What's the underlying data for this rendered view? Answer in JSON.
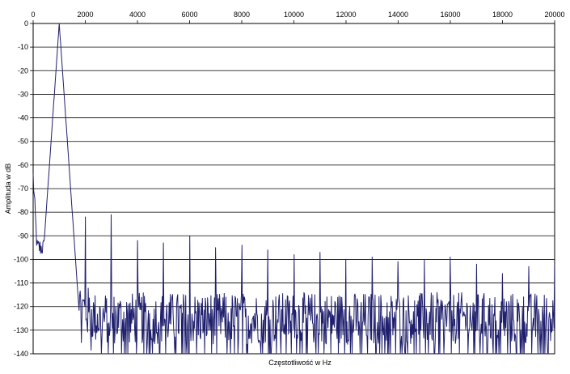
{
  "chart_data": {
    "type": "line",
    "title": "",
    "xlabel": "Częstotliwość w Hz",
    "ylabel": "Amplituda w dB",
    "xlim": [
      0,
      20000
    ],
    "ylim": [
      -140,
      0
    ],
    "x_ticks": [
      0,
      2000,
      4000,
      6000,
      8000,
      10000,
      12000,
      14000,
      16000,
      18000,
      20000
    ],
    "y_ticks": [
      0,
      -10,
      -20,
      -30,
      -40,
      -50,
      -60,
      -70,
      -80,
      -90,
      -100,
      -110,
      -120,
      -130,
      -140
    ],
    "x_tick_labels": [
      "0",
      "2000",
      "4000",
      "6000",
      "8000",
      "10000",
      "12000",
      "14000",
      "16000",
      "18000",
      "20000"
    ],
    "y_tick_labels": [
      "0",
      "-10",
      "-20",
      "-30",
      "-40",
      "-50",
      "-60",
      "-70",
      "-80",
      "-90",
      "-100",
      "-110",
      "-120",
      "-130",
      "-140"
    ],
    "x_axis_position": "top",
    "grid": "horizontal",
    "fundamental_hz": 1000,
    "noise_floor_db": -125,
    "series": [
      {
        "color": "#1f1f6e",
        "peaks": [
          {
            "x": 1000,
            "y": 0
          },
          {
            "x": 2000,
            "y": -82
          },
          {
            "x": 3000,
            "y": -81
          },
          {
            "x": 4000,
            "y": -92
          },
          {
            "x": 5000,
            "y": -93
          },
          {
            "x": 6000,
            "y": -90
          },
          {
            "x": 7000,
            "y": -95
          },
          {
            "x": 8000,
            "y": -94
          },
          {
            "x": 9000,
            "y": -96
          },
          {
            "x": 10000,
            "y": -98
          },
          {
            "x": 11000,
            "y": -97
          },
          {
            "x": 12000,
            "y": -100
          },
          {
            "x": 13000,
            "y": -99
          },
          {
            "x": 14000,
            "y": -101
          },
          {
            "x": 15000,
            "y": -100
          },
          {
            "x": 16000,
            "y": -99
          },
          {
            "x": 17000,
            "y": -102
          },
          {
            "x": 18000,
            "y": -106
          },
          {
            "x": 19000,
            "y": -103
          },
          {
            "x": 20000,
            "y": -102
          }
        ]
      }
    ]
  }
}
